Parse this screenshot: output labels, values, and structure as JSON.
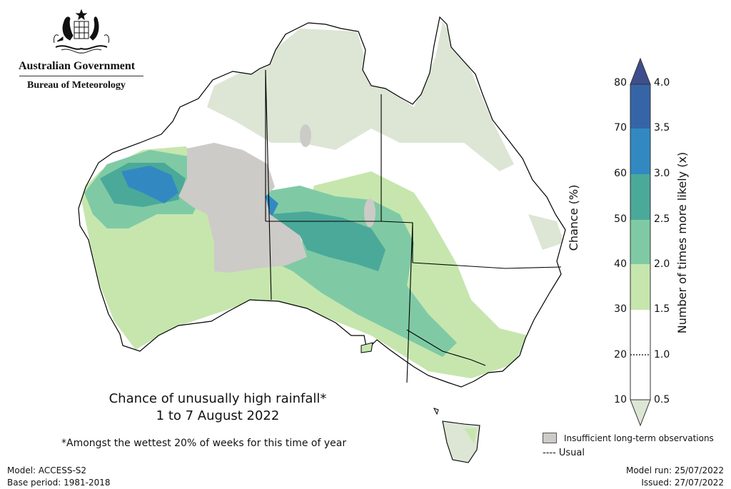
{
  "header": {
    "org_name": "Australian Government",
    "agency": "Bureau of Meteorology"
  },
  "map": {
    "title_line1": "Chance of unusually high rainfall*",
    "title_line2": "1 to 7 August 2022",
    "footnote": "*Amongst the wettest 20% of weeks for this time of year"
  },
  "legend": {
    "insufficient_label": "Insufficient long-term observations",
    "usual_label": "---- Usual",
    "insufficient_color": "#cccbc7"
  },
  "colorbar": {
    "left_label": "Chance (%)",
    "right_label": "Number of times more likely (x)",
    "left_ticks": [
      "80",
      "70",
      "60",
      "50",
      "40",
      "30",
      "20",
      "10"
    ],
    "right_ticks": [
      "4.0",
      "3.5",
      "3.0",
      "2.5",
      "2.0",
      "1.5",
      "1.0",
      "0.5"
    ],
    "colors": [
      "#3e4e8c",
      "#3565a6",
      "#3289c2",
      "#4ba99a",
      "#7fcaa5",
      "#c6e6ae",
      "#ffffff",
      "#ffffff",
      "#dde6d5"
    ]
  },
  "footer": {
    "model": "Model: ACCESS-S2",
    "base_period": "Base period: 1981-2018",
    "model_run": "Model run: 25/07/2022",
    "issued": "Issued: 27/07/2022"
  }
}
